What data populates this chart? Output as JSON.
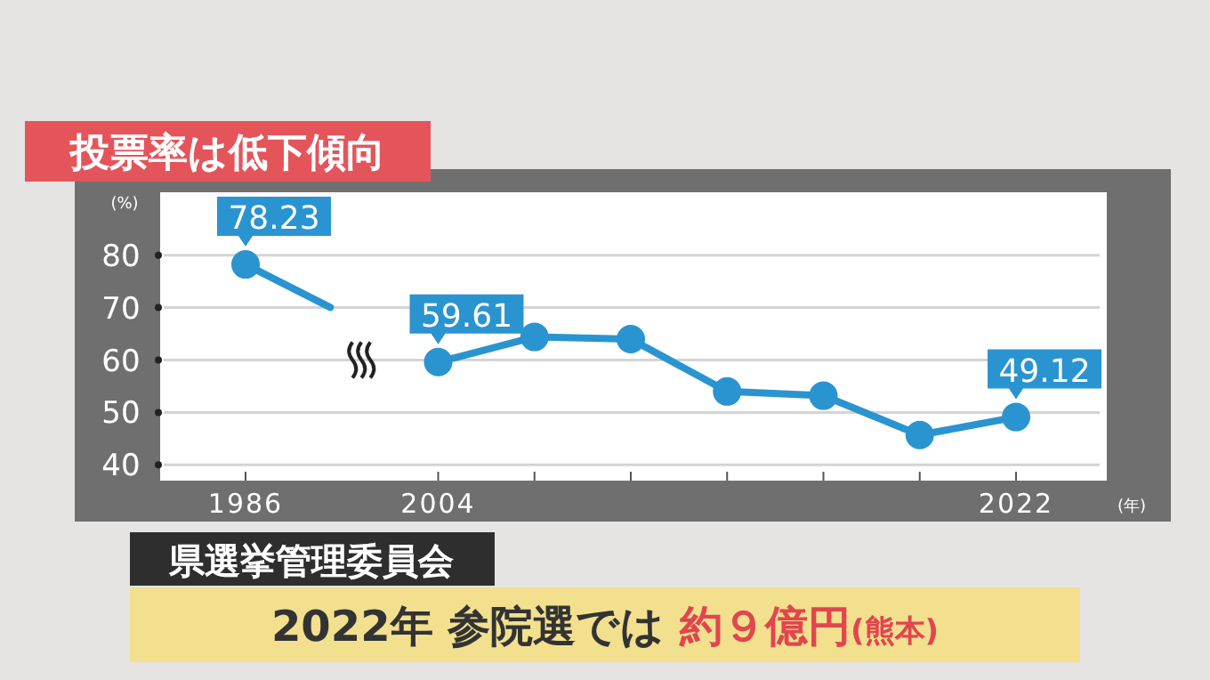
{
  "chart_data": {
    "type": "line",
    "title": "投票率は低下傾向",
    "ylabel": "(%)",
    "xlabel": "(年)",
    "categories": [
      "1986",
      null,
      "2004",
      null,
      null,
      null,
      null,
      null,
      "2022"
    ],
    "values": [
      78.23,
      null,
      59.61,
      64.4,
      64.0,
      54.0,
      53.2,
      45.7,
      49.12
    ],
    "value_labels": [
      "78.23",
      null,
      "59.61",
      null,
      null,
      null,
      null,
      null,
      "49.12"
    ],
    "color": "#2a94d0",
    "marker": "circle",
    "ylim": [
      37,
      92
    ],
    "yticks": [
      40,
      50,
      60,
      70,
      80
    ],
    "grid": "y",
    "annotations": [
      "県選挙管理委員会",
      "2022年 参院選では",
      "約９億円",
      "(熊本)"
    ]
  }
}
